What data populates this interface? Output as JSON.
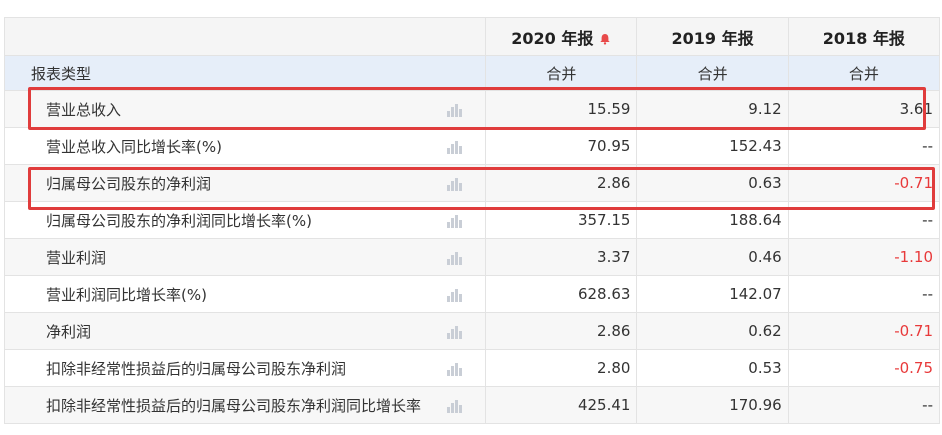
{
  "header": {
    "years": [
      "2020 年报",
      "2019 年报",
      "2018 年报"
    ],
    "type_label": "报表类型",
    "type_values": [
      "合并",
      "合并",
      "合并"
    ]
  },
  "rows": [
    {
      "name": "营业总收入",
      "values": [
        "15.59",
        "9.12",
        "3.61"
      ]
    },
    {
      "name": "营业总收入同比增长率(%)",
      "values": [
        "70.95",
        "152.43",
        "--"
      ]
    },
    {
      "name": "归属母公司股东的净利润",
      "values": [
        "2.86",
        "0.63",
        "-0.71"
      ]
    },
    {
      "name": "归属母公司股东的净利润同比增长率(%)",
      "values": [
        "357.15",
        "188.64",
        "--"
      ]
    },
    {
      "name": "营业利润",
      "values": [
        "3.37",
        "0.46",
        "-1.10"
      ]
    },
    {
      "name": "营业利润同比增长率(%)",
      "values": [
        "628.63",
        "142.07",
        "--"
      ]
    },
    {
      "name": "净利润",
      "values": [
        "2.86",
        "0.62",
        "-0.71"
      ]
    },
    {
      "name": "扣除非经常性损益后的归属母公司股东净利润",
      "values": [
        "2.80",
        "0.53",
        "-0.75"
      ]
    },
    {
      "name": "扣除非经常性损益后的归属母公司股东净利润同比增长率",
      "values": [
        "425.41",
        "170.96",
        "--"
      ]
    }
  ],
  "icons": {
    "bell": "bell-icon",
    "chart": "bar-chart-icon"
  },
  "colors": {
    "negative": "#e8393a",
    "highlight": "#e03c3c",
    "bell": "#e84a4a",
    "type_row_bg": "#e6eef9"
  }
}
